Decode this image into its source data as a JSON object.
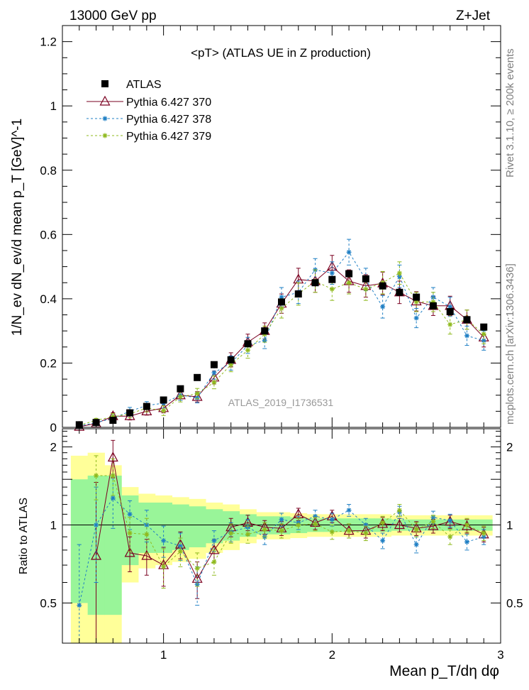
{
  "header": {
    "left": "13000 GeV pp",
    "right": "Z+Jet"
  },
  "side_text": {
    "rivet": "Rivet 3.1.10, ≥ 200k events",
    "mcplots": "mcplots.cern.ch [arXiv:1306.3436]"
  },
  "colors": {
    "data": "#000000",
    "p370": "#7a0020",
    "p378": "#1f7fc4",
    "p379": "#8fba1e",
    "band_inner": "#99f599",
    "band_outer": "#ffff99"
  },
  "chart_data": [
    {
      "type": "scatter",
      "panel": "main",
      "title": "<pT> (ATLAS UE in Z production)",
      "watermark": "ATLAS_2019_I1736531",
      "ylabel": "1/N_ev dN_ev/d mean p_T [GeV]^-1",
      "xlim": [
        0.4,
        3.0
      ],
      "ylim": [
        0,
        1.25
      ],
      "yticks": [
        0,
        0.2,
        0.4,
        0.6,
        0.8,
        1,
        1.2
      ],
      "ytick_labels": [
        "0",
        "0.2",
        "0.4",
        "0.6",
        "0.8",
        "1",
        "1.2"
      ],
      "legend": [
        "ATLAS",
        "Pythia 6.427 370",
        "Pythia 6.427 378",
        "Pythia 6.427 379"
      ],
      "x": [
        0.5,
        0.6,
        0.7,
        0.8,
        0.9,
        1.0,
        1.1,
        1.2,
        1.3,
        1.4,
        1.5,
        1.6,
        1.7,
        1.8,
        1.9,
        2.0,
        2.1,
        2.2,
        2.3,
        2.4,
        2.5,
        2.6,
        2.7,
        2.8,
        2.9
      ],
      "series": [
        {
          "name": "ATLAS",
          "style": "data",
          "values": [
            0.008,
            0.015,
            0.022,
            0.045,
            0.065,
            0.085,
            0.12,
            0.155,
            0.195,
            0.21,
            0.26,
            0.3,
            0.39,
            0.415,
            0.45,
            0.46,
            0.478,
            0.462,
            0.44,
            0.42,
            0.405,
            0.378,
            0.36,
            0.335,
            0.312
          ]
        },
        {
          "name": "Pythia 6.427 370",
          "style": "p370",
          "values": [
            0.002,
            0.012,
            0.035,
            0.035,
            0.05,
            0.06,
            0.1,
            0.095,
            0.155,
            0.21,
            0.265,
            0.3,
            0.385,
            0.46,
            0.455,
            0.5,
            0.455,
            0.44,
            0.448,
            0.42,
            0.392,
            0.378,
            0.378,
            0.335,
            0.28
          ],
          "err": [
            0.004,
            0.006,
            0.01,
            0.012,
            0.012,
            0.015,
            0.016,
            0.016,
            0.02,
            0.022,
            0.025,
            0.025,
            0.03,
            0.035,
            0.035,
            0.035,
            0.035,
            0.035,
            0.035,
            0.035,
            0.03,
            0.03,
            0.03,
            0.03,
            0.03
          ]
        },
        {
          "name": "Pythia 6.427 378",
          "style": "p378",
          "values": [
            0.004,
            0.015,
            0.028,
            0.05,
            0.068,
            0.075,
            0.1,
            0.092,
            0.17,
            0.2,
            0.255,
            0.27,
            0.405,
            0.42,
            0.49,
            0.48,
            0.545,
            0.46,
            0.375,
            0.47,
            0.34,
            0.405,
            0.375,
            0.285,
            0.27
          ],
          "err": [
            0.004,
            0.006,
            0.01,
            0.012,
            0.012,
            0.015,
            0.016,
            0.016,
            0.02,
            0.022,
            0.025,
            0.025,
            0.03,
            0.035,
            0.035,
            0.035,
            0.04,
            0.035,
            0.035,
            0.035,
            0.03,
            0.03,
            0.03,
            0.03,
            0.03
          ]
        },
        {
          "name": "Pythia 6.427 379",
          "style": "p379",
          "values": [
            0.006,
            0.022,
            0.033,
            0.042,
            0.06,
            0.052,
            0.095,
            0.105,
            0.14,
            0.195,
            0.24,
            0.29,
            0.37,
            0.415,
            0.455,
            0.43,
            0.45,
            0.43,
            0.45,
            0.48,
            0.39,
            0.39,
            0.32,
            0.335,
            0.29
          ],
          "err": [
            0.004,
            0.006,
            0.01,
            0.012,
            0.012,
            0.015,
            0.016,
            0.016,
            0.02,
            0.022,
            0.025,
            0.025,
            0.03,
            0.035,
            0.035,
            0.035,
            0.035,
            0.035,
            0.035,
            0.035,
            0.03,
            0.03,
            0.03,
            0.03,
            0.03
          ]
        }
      ]
    },
    {
      "type": "line",
      "panel": "ratio",
      "ylabel": "Ratio to ATLAS",
      "xlabel": "Mean p_T/dη dφ",
      "xlim": [
        0.4,
        3.0
      ],
      "ylim": [
        0.35,
        2.35
      ],
      "yticks": [
        0.5,
        1,
        1.5,
        2
      ],
      "ytick_labels": [
        "0.5",
        "1",
        "",
        "2"
      ],
      "xticks": [
        1,
        2,
        3
      ],
      "xtick_labels": [
        "1",
        "2",
        "3"
      ],
      "x": [
        0.5,
        0.6,
        0.7,
        0.8,
        0.9,
        1.0,
        1.1,
        1.2,
        1.3,
        1.4,
        1.5,
        1.6,
        1.7,
        1.8,
        1.9,
        2.0,
        2.1,
        2.2,
        2.3,
        2.4,
        2.5,
        2.6,
        2.7,
        2.8,
        2.9
      ],
      "band_inner_halfwidth": [
        0.5,
        0.55,
        0.55,
        0.3,
        0.22,
        0.22,
        0.2,
        0.18,
        0.15,
        0.13,
        0.1,
        0.08,
        0.08,
        0.07,
        0.06,
        0.06,
        0.06,
        0.06,
        0.06,
        0.05,
        0.05,
        0.05,
        0.05,
        0.05,
        0.05
      ],
      "band_outer_halfwidth": [
        0.85,
        0.9,
        0.7,
        0.4,
        0.32,
        0.3,
        0.28,
        0.26,
        0.22,
        0.2,
        0.15,
        0.12,
        0.12,
        0.11,
        0.1,
        0.1,
        0.1,
        0.1,
        0.1,
        0.09,
        0.09,
        0.09,
        0.09,
        0.09,
        0.09
      ],
      "series": [
        {
          "name": "Pythia 6.427 370",
          "style": "p370",
          "values": [
            null,
            0.76,
            1.82,
            0.78,
            0.76,
            0.7,
            0.84,
            0.62,
            0.8,
            0.98,
            1.02,
            0.98,
            0.97,
            1.1,
            1.02,
            1.08,
            0.95,
            0.95,
            1.01,
            1.0,
            0.97,
            0.99,
            1.03,
            0.99,
            0.92
          ],
          "err": [
            0,
            0.7,
            0.3,
            0.12,
            0.12,
            0.12,
            0.1,
            0.1,
            0.08,
            0.08,
            0.07,
            0.06,
            0.06,
            0.06,
            0.06,
            0.06,
            0.06,
            0.06,
            0.06,
            0.06,
            0.06,
            0.06,
            0.06,
            0.06,
            0.06
          ]
        },
        {
          "name": "Pythia 6.427 378",
          "style": "p378",
          "values": [
            0.49,
            1.0,
            1.27,
            1.1,
            1.0,
            0.87,
            0.83,
            0.59,
            0.87,
            0.94,
            0.98,
            0.9,
            1.05,
            1.02,
            1.08,
            1.05,
            1.14,
            1.0,
            0.87,
            1.12,
            0.84,
            1.07,
            1.04,
            0.86,
            0.9
          ],
          "err": [
            0.35,
            0.4,
            0.3,
            0.14,
            0.14,
            0.12,
            0.1,
            0.1,
            0.08,
            0.08,
            0.07,
            0.06,
            0.06,
            0.06,
            0.06,
            0.06,
            0.06,
            0.06,
            0.06,
            0.06,
            0.06,
            0.06,
            0.06,
            0.06,
            0.06
          ]
        },
        {
          "name": "Pythia 6.427 379",
          "style": "p379",
          "values": [
            null,
            1.55,
            1.55,
            0.93,
            0.92,
            0.69,
            0.79,
            0.68,
            0.72,
            0.93,
            0.92,
            0.96,
            0.95,
            1.0,
            1.01,
            0.94,
            0.95,
            0.93,
            1.02,
            1.14,
            0.96,
            1.03,
            0.9,
            1.0,
            0.93
          ],
          "err": [
            0,
            0.3,
            0.25,
            0.14,
            0.14,
            0.12,
            0.1,
            0.1,
            0.08,
            0.08,
            0.07,
            0.06,
            0.06,
            0.06,
            0.06,
            0.06,
            0.06,
            0.06,
            0.06,
            0.06,
            0.06,
            0.06,
            0.06,
            0.06,
            0.06
          ]
        }
      ]
    }
  ]
}
